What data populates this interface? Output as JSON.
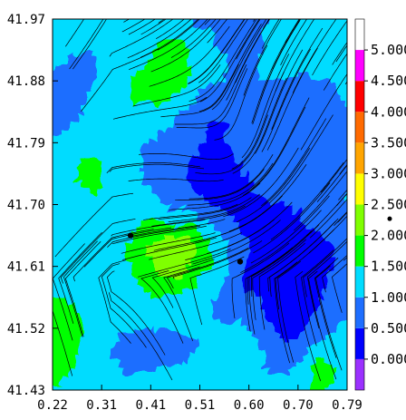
{
  "chart_data": {
    "type": "heatmap",
    "subtype": "filled-contour with streamlines",
    "title": "",
    "xlabel": "",
    "ylabel": "",
    "x_ticks": [
      "0.22",
      "0.31",
      "0.41",
      "0.51",
      "0.60",
      "0.70",
      "0.79"
    ],
    "y_ticks": [
      "41.43",
      "41.52",
      "41.61",
      "41.70",
      "41.79",
      "41.88",
      "41.97"
    ],
    "xlim": [
      0.22,
      0.79
    ],
    "ylim": [
      41.43,
      41.97
    ],
    "colorbar": {
      "levels": [
        "0.000",
        "0.500",
        "1.000",
        "1.500",
        "2.000",
        "2.500",
        "3.000",
        "3.500",
        "4.000",
        "4.500",
        "5.000"
      ],
      "colors": [
        "#9b30ff",
        "#0000ff",
        "#1e6eff",
        "#00dcff",
        "#00ff00",
        "#7fff00",
        "#ffff00",
        "#ffa500",
        "#ff6a00",
        "#ff0000",
        "#ff00ff"
      ],
      "range": [
        -0.5,
        5.5
      ]
    },
    "markers": [
      {
        "x": 0.371,
        "y": 41.655
      },
      {
        "x": 0.583,
        "y": 41.617
      }
    ],
    "streamlines": true,
    "grid": false
  }
}
